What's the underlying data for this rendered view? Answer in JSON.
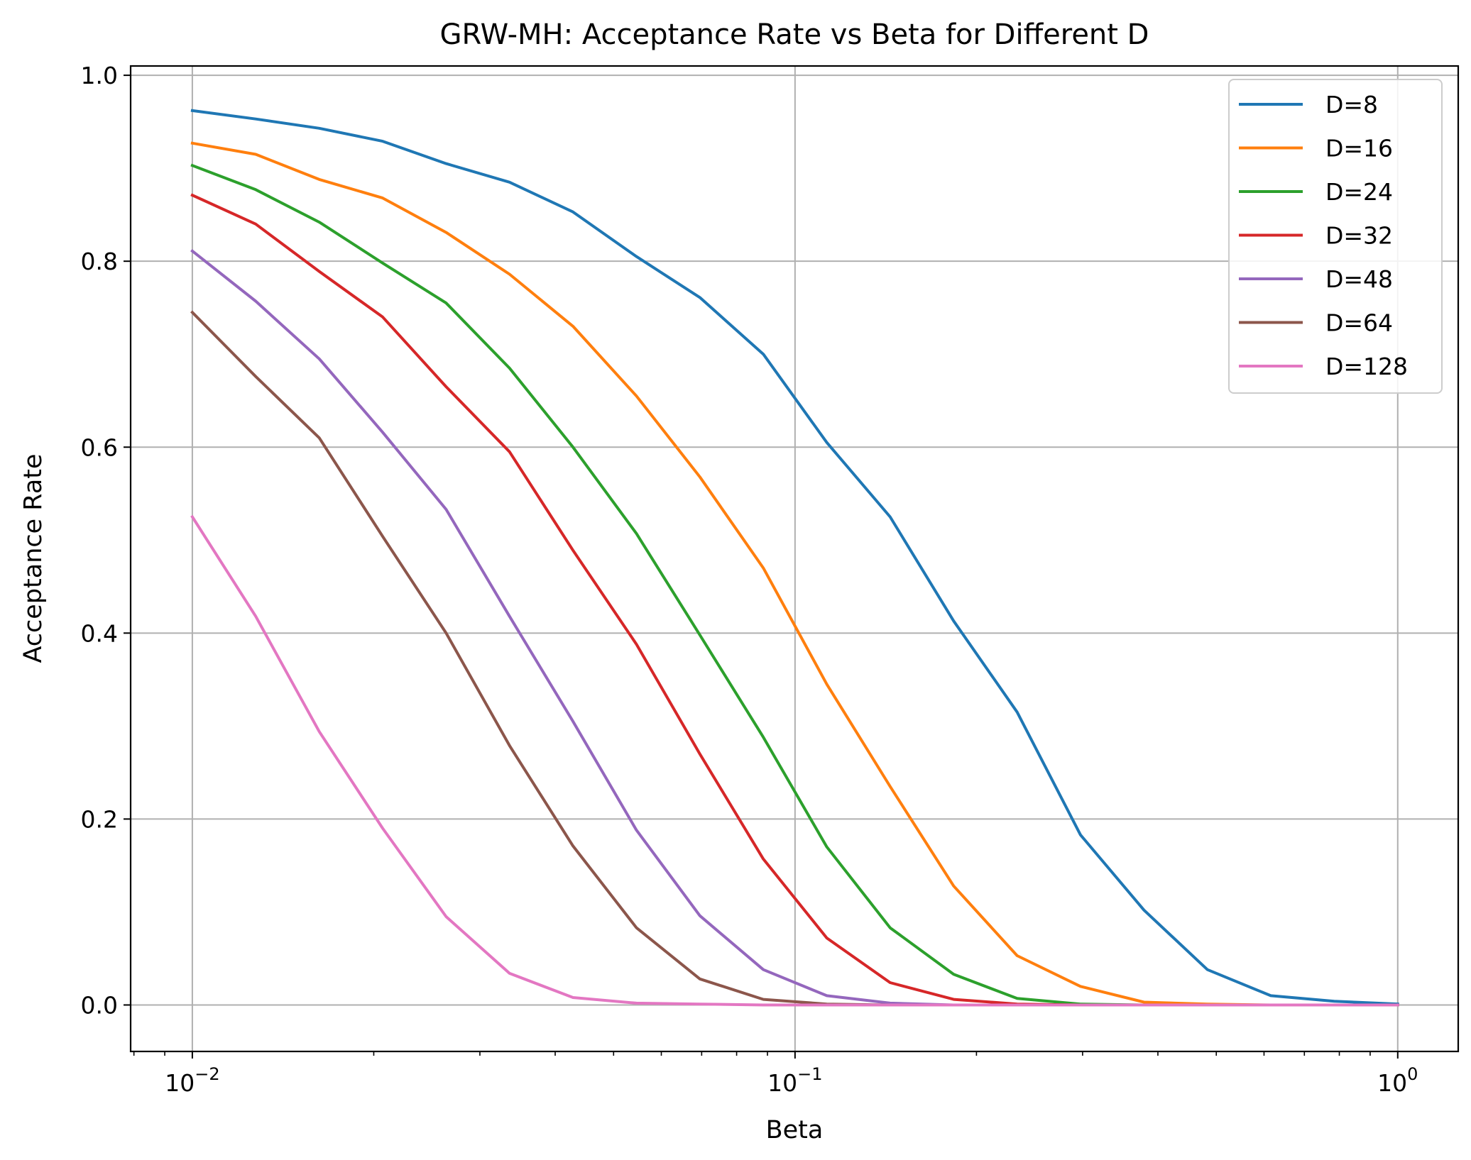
{
  "chart_data": {
    "type": "line",
    "title": "GRW-MH: Acceptance Rate vs Beta for Different D",
    "xlabel": "Beta",
    "ylabel": "Acceptance Rate",
    "xscale": "log",
    "xlim": [
      0.0079,
      1.26
    ],
    "ylim": [
      -0.05,
      1.01
    ],
    "grid": true,
    "legend_position": "top-right",
    "x": [
      0.01,
      0.01274,
      0.01624,
      0.02069,
      0.02637,
      0.0336,
      0.04281,
      0.05456,
      0.06952,
      0.08859,
      0.1129,
      0.1438,
      0.1833,
      0.2336,
      0.2976,
      0.3793,
      0.4833,
      0.6158,
      0.7848,
      1.0
    ],
    "x_ticks": [
      {
        "value": 0.01,
        "base": "10",
        "exp": "−2"
      },
      {
        "value": 0.1,
        "base": "10",
        "exp": "−1"
      },
      {
        "value": 1,
        "base": "10",
        "exp": "0"
      }
    ],
    "y_ticks": [
      "0.0",
      "0.2",
      "0.4",
      "0.6",
      "0.8",
      "1.0"
    ],
    "series": [
      {
        "name": "D=8",
        "color": "#1f77b4",
        "values": [
          0.962,
          0.953,
          0.943,
          0.929,
          0.905,
          0.885,
          0.853,
          0.805,
          0.761,
          0.7,
          0.605,
          0.525,
          0.413,
          0.315,
          0.183,
          0.102,
          0.038,
          0.01,
          0.004,
          0.001
        ]
      },
      {
        "name": "D=16",
        "color": "#ff7f0e",
        "values": [
          0.927,
          0.915,
          0.888,
          0.868,
          0.831,
          0.786,
          0.73,
          0.655,
          0.568,
          0.47,
          0.345,
          0.235,
          0.128,
          0.053,
          0.02,
          0.003,
          0.001,
          0.0,
          0.0,
          0.0
        ]
      },
      {
        "name": "D=24",
        "color": "#2ca02c",
        "values": [
          0.903,
          0.877,
          0.842,
          0.798,
          0.755,
          0.685,
          0.6,
          0.507,
          0.398,
          0.288,
          0.17,
          0.083,
          0.033,
          0.007,
          0.001,
          0.0,
          0.0,
          0.0,
          0.0,
          0.0
        ]
      },
      {
        "name": "D=32",
        "color": "#d62728",
        "values": [
          0.871,
          0.84,
          0.789,
          0.74,
          0.665,
          0.595,
          0.489,
          0.388,
          0.27,
          0.157,
          0.072,
          0.024,
          0.006,
          0.001,
          0.0,
          0.0,
          0.0,
          0.0,
          0.0,
          0.0
        ]
      },
      {
        "name": "D=48",
        "color": "#9467bd",
        "values": [
          0.811,
          0.757,
          0.695,
          0.616,
          0.533,
          0.418,
          0.305,
          0.188,
          0.096,
          0.038,
          0.01,
          0.002,
          0.0,
          0.0,
          0.0,
          0.0,
          0.0,
          0.0,
          0.0,
          0.0
        ]
      },
      {
        "name": "D=64",
        "color": "#8c564b",
        "values": [
          0.745,
          0.676,
          0.61,
          0.504,
          0.4,
          0.279,
          0.171,
          0.083,
          0.028,
          0.006,
          0.001,
          0.0,
          0.0,
          0.0,
          0.0,
          0.0,
          0.0,
          0.0,
          0.0,
          0.0
        ]
      },
      {
        "name": "D=128",
        "color": "#e377c2",
        "values": [
          0.525,
          0.418,
          0.294,
          0.19,
          0.095,
          0.034,
          0.008,
          0.002,
          0.001,
          0.0,
          0.0,
          0.0,
          0.0,
          0.0,
          0.0,
          0.0,
          0.0,
          0.0,
          0.0,
          0.0
        ]
      }
    ]
  }
}
